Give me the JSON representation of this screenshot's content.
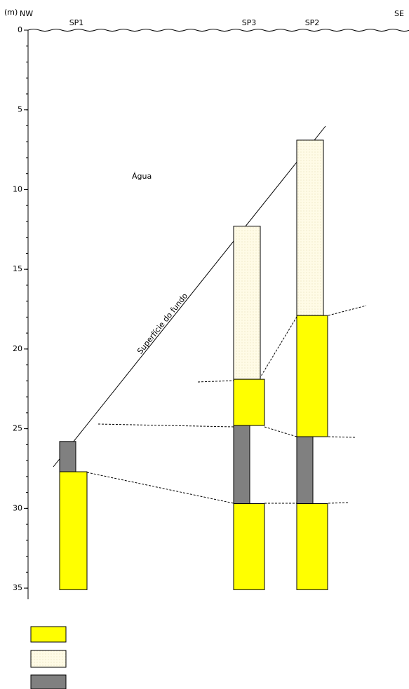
{
  "unit_label": "(m)",
  "directions": {
    "left": "NW",
    "right": "SE"
  },
  "water_label": "Água",
  "surface_label": "Superfície do fundo",
  "depth_axis": {
    "lim": [
      0,
      35.7
    ],
    "ticks": [
      0,
      5,
      10,
      15,
      20,
      25,
      30,
      35
    ],
    "minor_step": 1
  },
  "cores": [
    {
      "name": "SP1",
      "layers": [
        {
          "top": 25.8,
          "bottom": 27.7,
          "color": "#808080"
        },
        {
          "top": 27.7,
          "bottom": 35.1,
          "color": "#ffff00"
        }
      ]
    },
    {
      "name": "SP3",
      "layers": [
        {
          "top": 12.3,
          "bottom": 21.9,
          "color": "#fffbe6"
        },
        {
          "top": 21.9,
          "bottom": 24.8,
          "color": "#ffff00"
        },
        {
          "top": 24.8,
          "bottom": 29.7,
          "color": "#808080"
        },
        {
          "top": 29.7,
          "bottom": 35.1,
          "color": "#ffff00"
        }
      ]
    },
    {
      "name": "SP2",
      "layers": [
        {
          "top": 6.9,
          "bottom": 17.9,
          "color": "#fffbe6"
        },
        {
          "top": 17.9,
          "bottom": 25.5,
          "color": "#ffff00"
        },
        {
          "top": 25.5,
          "bottom": 29.7,
          "color": "#808080"
        },
        {
          "top": 29.7,
          "bottom": 35.1,
          "color": "#ffff00"
        }
      ]
    }
  ]
}
